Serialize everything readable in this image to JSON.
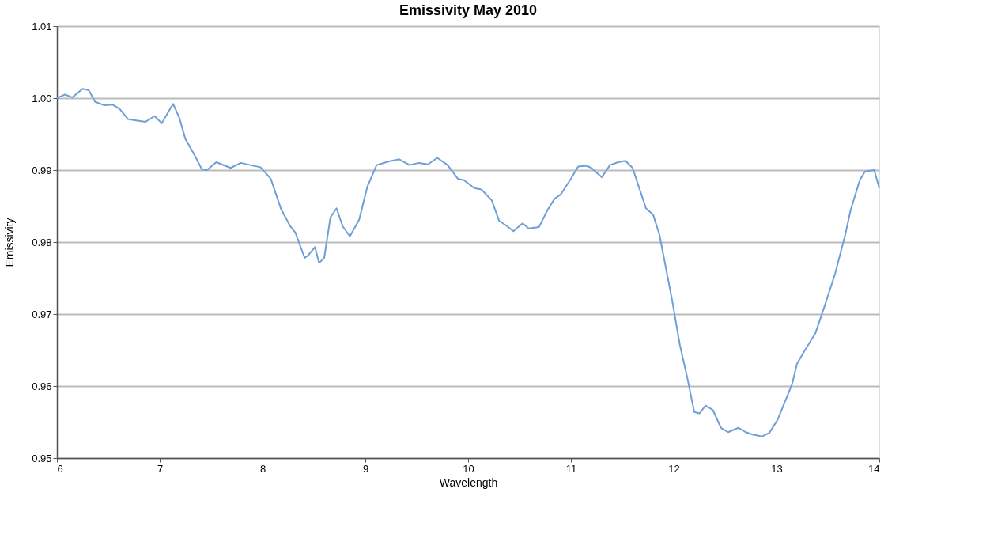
{
  "chart_data": {
    "type": "line",
    "title": "Emissivity May 2010",
    "xlabel": "Wavelength",
    "ylabel": "Emissivity",
    "x": [
      6.0,
      6.08,
      6.15,
      6.25,
      6.31,
      6.37,
      6.46,
      6.54,
      6.61,
      6.69,
      6.77,
      6.86,
      6.95,
      7.02,
      7.13,
      7.19,
      7.25,
      7.33,
      7.41,
      7.46,
      7.55,
      7.69,
      7.79,
      7.88,
      7.98,
      8.08,
      8.18,
      8.27,
      8.32,
      8.41,
      8.44,
      8.51,
      8.55,
      8.6,
      8.66,
      8.72,
      8.78,
      8.85,
      8.94,
      9.02,
      9.11,
      9.23,
      9.33,
      9.43,
      9.52,
      9.61,
      9.7,
      9.8,
      9.9,
      9.96,
      10.06,
      10.13,
      10.23,
      10.3,
      10.38,
      10.44,
      10.53,
      10.59,
      10.69,
      10.77,
      10.84,
      10.9,
      11.0,
      11.07,
      11.15,
      11.2,
      11.3,
      11.38,
      11.46,
      11.53,
      11.6,
      11.66,
      11.73,
      11.8,
      11.86,
      11.92,
      11.98,
      12.06,
      12.13,
      12.2,
      12.25,
      12.31,
      12.38,
      12.46,
      12.53,
      12.63,
      12.7,
      12.76,
      12.86,
      12.93,
      13.01,
      13.07,
      13.15,
      13.2,
      13.26,
      13.38,
      13.47,
      13.57,
      13.67,
      13.72,
      13.81,
      13.86,
      13.95,
      14.0
    ],
    "series": [
      {
        "color": "#6f9fd8",
        "values": [
          1.0,
          1.0005,
          1.0001,
          1.0013,
          1.0011,
          0.9995,
          0.999,
          0.9991,
          0.9985,
          0.9971,
          0.9969,
          0.9967,
          0.9975,
          0.9965,
          0.9992,
          0.9973,
          0.9943,
          0.9923,
          0.9901,
          0.99,
          0.9911,
          0.9903,
          0.991,
          0.9907,
          0.9904,
          0.9888,
          0.9846,
          0.9822,
          0.9813,
          0.9778,
          0.9781,
          0.9793,
          0.9771,
          0.9778,
          0.9834,
          0.9847,
          0.9822,
          0.9808,
          0.9831,
          0.9877,
          0.9907,
          0.9912,
          0.9915,
          0.9907,
          0.991,
          0.9908,
          0.9917,
          0.9907,
          0.9888,
          0.9886,
          0.9875,
          0.9873,
          0.9858,
          0.983,
          0.9822,
          0.9815,
          0.9826,
          0.9819,
          0.9821,
          0.9844,
          0.986,
          0.9866,
          0.9888,
          0.9905,
          0.9906,
          0.9903,
          0.989,
          0.9907,
          0.9911,
          0.9913,
          0.9903,
          0.9877,
          0.9847,
          0.9838,
          0.9811,
          0.9767,
          0.9723,
          0.9657,
          0.9613,
          0.9564,
          0.9562,
          0.9573,
          0.9567,
          0.9542,
          0.9536,
          0.9542,
          0.9536,
          0.9533,
          0.953,
          0.9535,
          0.9553,
          0.9574,
          0.9602,
          0.9631,
          0.9646,
          0.9674,
          0.9712,
          0.9756,
          0.9811,
          0.9844,
          0.9886,
          0.9898,
          0.99,
          0.9875
        ]
      }
    ],
    "xlim": [
      6,
      14
    ],
    "xticks": [
      6,
      7,
      8,
      9,
      10,
      11,
      12,
      13,
      14
    ],
    "ylim": [
      0.95,
      1.01
    ],
    "yticks": [
      {
        "value": 0.95,
        "label": "0.95"
      },
      {
        "value": 0.96,
        "label": "0.96"
      },
      {
        "value": 0.97,
        "label": "0.97"
      },
      {
        "value": 0.98,
        "label": "0.98"
      },
      {
        "value": 0.99,
        "label": "0.99"
      },
      {
        "value": 1.0,
        "label": "1.00"
      },
      {
        "value": 1.01,
        "label": "1.01"
      }
    ],
    "grid": "y",
    "legend": false,
    "marker": "none",
    "line_style": "solid"
  }
}
